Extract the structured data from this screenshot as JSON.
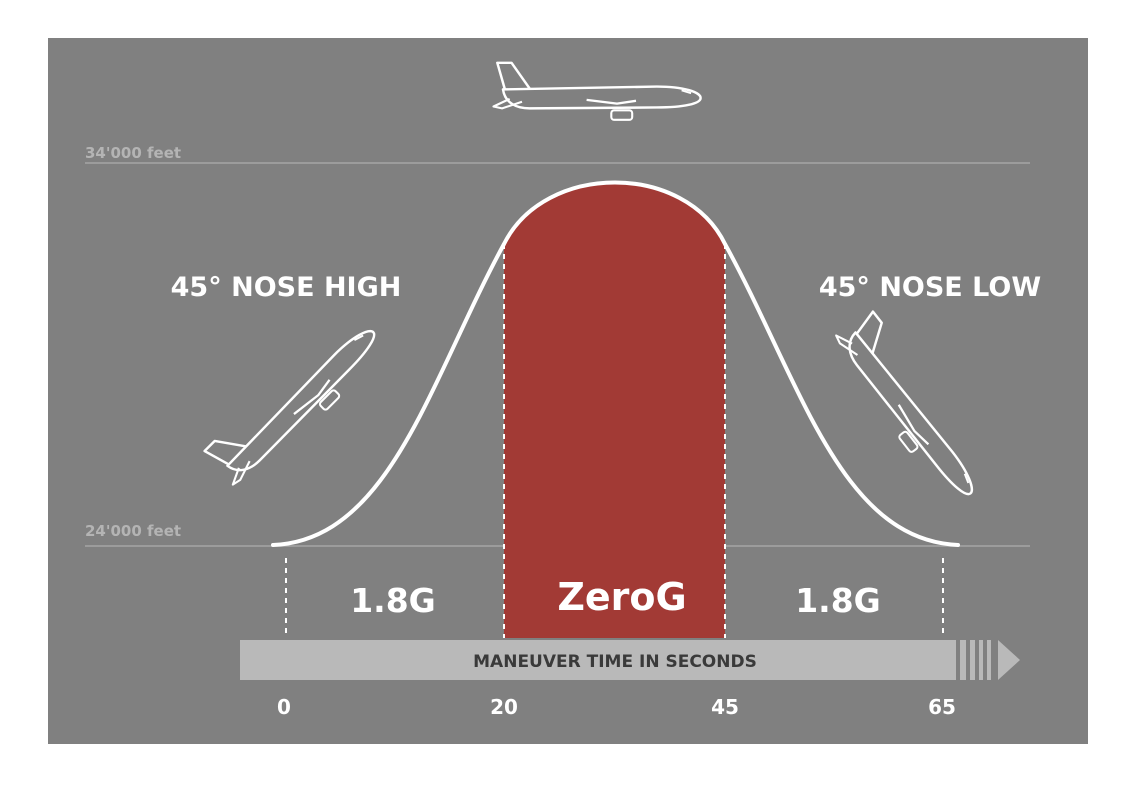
{
  "colors": {
    "background": "#ffffff",
    "panel": "#808080",
    "curve": "#ffffff",
    "zero_g_fill": "#a23a35",
    "reference_line": "#a6a6a6",
    "altitude_label": "#b4b4b4",
    "time_bar": "#b9b9b9",
    "time_bar_text": "#3a3a3a",
    "label_text": "#ffffff"
  },
  "altitude": {
    "top_label": "34'000 feet",
    "bottom_label": "24'000 feet"
  },
  "phases": {
    "left_label": "45° NOSE HIGH",
    "right_label": "45° NOSE LOW",
    "left_g": "1.8G",
    "middle_g": "ZeroG",
    "right_g": "1.8G"
  },
  "timeline": {
    "title": "MANEUVER TIME IN SECONDS",
    "ticks": [
      "0",
      "20",
      "45",
      "65"
    ]
  },
  "icons": {
    "top": "airplane-level-icon",
    "left": "airplane-climbing-icon",
    "right": "airplane-descending-icon"
  }
}
